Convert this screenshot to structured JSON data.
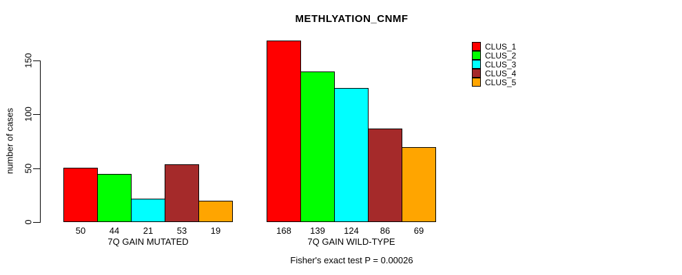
{
  "title": "METHLYATION_CNMF",
  "y_axis": {
    "label": "number of cases",
    "tick_labels": [
      "0",
      "50",
      "100",
      "150"
    ]
  },
  "footer": "Fisher's exact test P = 0.00026",
  "legend": {
    "items": [
      {
        "label": "CLUS_1",
        "color": "#FF0000"
      },
      {
        "label": "CLUS_2",
        "color": "#00FF00"
      },
      {
        "label": "CLUS_3",
        "color": "#00FFFF"
      },
      {
        "label": "CLUS_4",
        "color": "#A52A2A"
      },
      {
        "label": "CLUS_5",
        "color": "#FFA500"
      }
    ]
  },
  "colors": {
    "background": "#FFFFFF",
    "axis": "#000000",
    "bar_border": "#000000",
    "text": "#000000"
  },
  "chart_data": {
    "type": "bar",
    "title": "METHLYATION_CNMF",
    "xlabel": "",
    "ylabel": "number of cases",
    "ylim": [
      0,
      175
    ],
    "yticks": [
      0,
      50,
      100,
      150
    ],
    "grid": false,
    "legend_position": "right",
    "series_labels": [
      "CLUS_1",
      "CLUS_2",
      "CLUS_3",
      "CLUS_4",
      "CLUS_5"
    ],
    "series_colors": [
      "#FF0000",
      "#00FF00",
      "#00FFFF",
      "#A52A2A",
      "#FFA500"
    ],
    "groups": [
      {
        "label": "7Q GAIN MUTATED",
        "values": [
          50,
          44,
          21,
          53,
          19
        ]
      },
      {
        "label": "7Q GAIN WILD-TYPE",
        "values": [
          168,
          139,
          124,
          86,
          69
        ]
      }
    ],
    "bar_value_labels_shown": true,
    "annotation": "Fisher's exact test P = 0.00026"
  }
}
